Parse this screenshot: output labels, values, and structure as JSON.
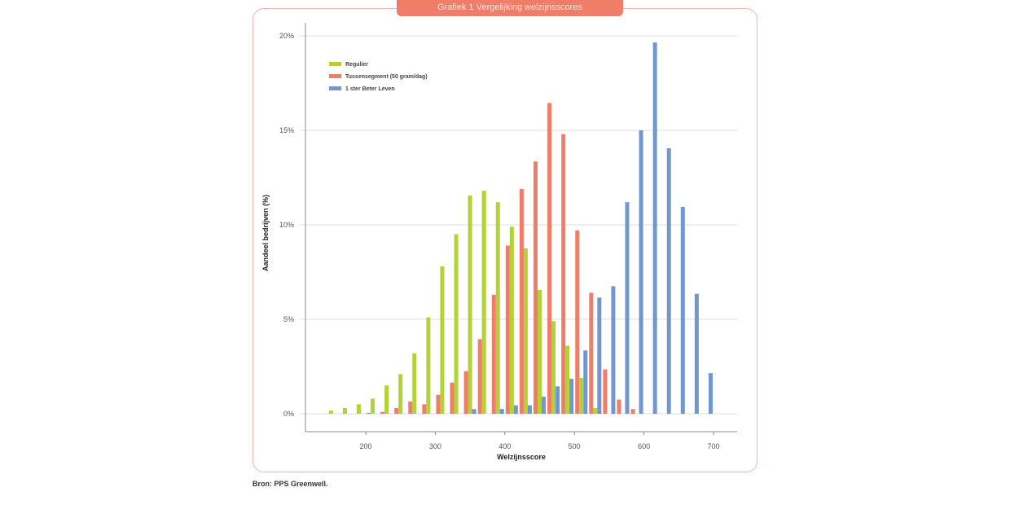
{
  "title": "Grafiek 1 Vergelijking welzijnsscores",
  "source": "Bron: PPS Greenwell.",
  "chart_data": {
    "type": "bar",
    "title": "Grafiek 1 Vergelijking welzijnsscores",
    "xlabel": "Welzijnsscore",
    "ylabel": "Aandeel bedrijven (%)",
    "xlim": [
      115,
      730
    ],
    "ylim": [
      0,
      20
    ],
    "xticks": [
      200,
      300,
      400,
      500,
      600,
      700
    ],
    "yticks": [
      0,
      5,
      10,
      15,
      20
    ],
    "ytick_labels": [
      "0%",
      "5%",
      "10%",
      "15%",
      "20%"
    ],
    "grid": true,
    "legend_position": "top-left",
    "x": [
      150,
      170,
      190,
      210,
      230,
      250,
      270,
      290,
      310,
      330,
      350,
      370,
      390,
      410,
      430,
      450,
      470,
      490,
      510,
      530,
      550,
      570,
      590,
      610,
      630,
      650,
      670,
      690
    ],
    "series": [
      {
        "name": "Regulier",
        "color": "#b2d235",
        "values": [
          0.17,
          0.3,
          0.5,
          0.8,
          1.5,
          2.1,
          3.2,
          5.1,
          7.8,
          9.5,
          11.55,
          11.8,
          11.2,
          9.9,
          8.75,
          6.55,
          4.9,
          3.6,
          1.9,
          0.3,
          0,
          0,
          0,
          0,
          0,
          0,
          0,
          0
        ]
      },
      {
        "name": "Tussensegment (50 gram/dag)",
        "color": "#ef7d68",
        "values": [
          0,
          0,
          0,
          0.05,
          0.1,
          0.3,
          0.65,
          0.5,
          1.0,
          1.65,
          2.25,
          3.95,
          6.3,
          8.9,
          11.9,
          13.35,
          16.45,
          14.8,
          9.7,
          6.4,
          2.35,
          0.75,
          0.25,
          0,
          0,
          0,
          0,
          0
        ]
      },
      {
        "name": "1 ster Beter Leven",
        "color": "#7297cf",
        "values": [
          0,
          0,
          0,
          0,
          0,
          0,
          0,
          0,
          0,
          0,
          0.25,
          0,
          0.25,
          0.45,
          0.45,
          0.9,
          1.45,
          1.85,
          3.35,
          6.15,
          6.75,
          11.2,
          15.0,
          19.65,
          14.05,
          10.95,
          6.35,
          2.15
        ]
      }
    ]
  }
}
